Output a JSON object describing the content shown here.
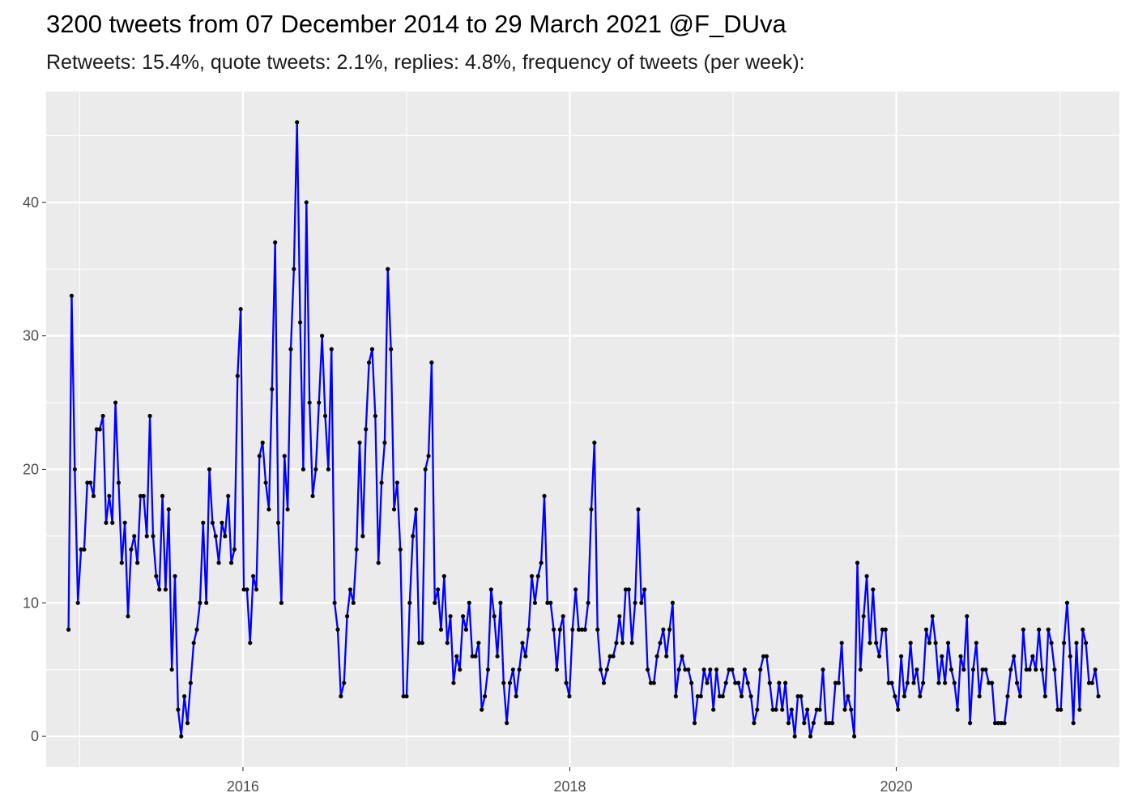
{
  "chart_data": {
    "type": "line",
    "title": "3200 tweets from 07 December 2014 to 29 March 2021 @F_DUva",
    "subtitle": "Retweets: 15.4%, quote tweets: 2.1%, replies: 4.8%, frequency of tweets (per week):",
    "xlabel": "",
    "ylabel": "",
    "x_range": [
      "2014-10-18",
      "2021-05-14"
    ],
    "x_ticks": [
      {
        "date": "2016-01-01",
        "label": "2016"
      },
      {
        "date": "2018-01-01",
        "label": "2018"
      },
      {
        "date": "2020-01-01",
        "label": "2020"
      }
    ],
    "ylim": [
      -2.3,
      48.3
    ],
    "y_ticks": [
      0,
      10,
      20,
      30,
      40
    ],
    "grid": true,
    "series": [
      {
        "color": "#0000ff",
        "point_color": "#000000",
        "x": [
          "2014-12-07",
          "2014-12-14",
          "2014-12-21",
          "2014-12-28",
          "2015-01-04",
          "2015-01-11",
          "2015-01-18",
          "2015-01-25",
          "2015-02-01",
          "2015-02-08",
          "2015-02-15",
          "2015-02-22",
          "2015-03-01",
          "2015-03-08",
          "2015-03-15",
          "2015-03-22",
          "2015-03-29",
          "2015-04-05",
          "2015-04-12",
          "2015-04-19",
          "2015-04-26",
          "2015-05-03",
          "2015-05-10",
          "2015-05-17",
          "2015-05-24",
          "2015-05-31",
          "2015-06-07",
          "2015-06-14",
          "2015-06-21",
          "2015-06-28",
          "2015-07-05",
          "2015-07-12",
          "2015-07-19",
          "2015-07-26",
          "2015-08-02",
          "2015-08-09",
          "2015-08-16",
          "2015-08-23",
          "2015-08-30",
          "2015-09-06",
          "2015-09-13",
          "2015-09-20",
          "2015-09-27",
          "2015-10-04",
          "2015-10-11",
          "2015-10-18",
          "2015-10-25",
          "2015-11-01",
          "2015-11-08",
          "2015-11-15",
          "2015-11-22",
          "2015-11-29",
          "2015-12-06",
          "2015-12-13",
          "2015-12-20",
          "2015-12-27",
          "2016-01-03",
          "2016-01-10",
          "2016-01-17",
          "2016-01-24",
          "2016-01-31",
          "2016-02-07",
          "2016-02-14",
          "2016-02-21",
          "2016-02-28",
          "2016-03-06",
          "2016-03-13",
          "2016-03-20",
          "2016-03-27",
          "2016-04-03",
          "2016-04-10",
          "2016-04-17",
          "2016-04-24",
          "2016-05-01",
          "2016-05-08",
          "2016-05-15",
          "2016-05-22",
          "2016-05-29",
          "2016-06-05",
          "2016-06-12",
          "2016-06-19",
          "2016-06-26",
          "2016-07-03",
          "2016-07-10",
          "2016-07-17",
          "2016-07-24",
          "2016-07-31",
          "2016-08-07",
          "2016-08-14",
          "2016-08-21",
          "2016-08-28",
          "2016-09-04",
          "2016-09-11",
          "2016-09-18",
          "2016-09-25",
          "2016-10-02",
          "2016-10-09",
          "2016-10-16",
          "2016-10-23",
          "2016-10-30",
          "2016-11-06",
          "2016-11-13",
          "2016-11-20",
          "2016-11-27",
          "2016-12-04",
          "2016-12-11",
          "2016-12-18",
          "2016-12-25",
          "2017-01-01",
          "2017-01-08",
          "2017-01-15",
          "2017-01-22",
          "2017-01-29",
          "2017-02-05",
          "2017-02-12",
          "2017-02-19",
          "2017-02-26",
          "2017-03-05",
          "2017-03-12",
          "2017-03-19",
          "2017-03-26",
          "2017-04-02",
          "2017-04-09",
          "2017-04-16",
          "2017-04-23",
          "2017-04-30",
          "2017-05-07",
          "2017-05-14",
          "2017-05-21",
          "2017-05-28",
          "2017-06-04",
          "2017-06-11",
          "2017-06-18",
          "2017-06-25",
          "2017-07-02",
          "2017-07-09",
          "2017-07-16",
          "2017-07-23",
          "2017-07-30",
          "2017-08-06",
          "2017-08-13",
          "2017-08-20",
          "2017-08-27",
          "2017-09-03",
          "2017-09-10",
          "2017-09-17",
          "2017-09-24",
          "2017-10-01",
          "2017-10-08",
          "2017-10-15",
          "2017-10-22",
          "2017-10-29",
          "2017-11-05",
          "2017-11-12",
          "2017-11-19",
          "2017-11-26",
          "2017-12-03",
          "2017-12-10",
          "2017-12-17",
          "2017-12-24",
          "2017-12-31",
          "2018-01-07",
          "2018-01-14",
          "2018-01-21",
          "2018-01-28",
          "2018-02-04",
          "2018-02-11",
          "2018-02-18",
          "2018-02-25",
          "2018-03-04",
          "2018-03-11",
          "2018-03-18",
          "2018-03-25",
          "2018-04-01",
          "2018-04-08",
          "2018-04-15",
          "2018-04-22",
          "2018-04-29",
          "2018-05-06",
          "2018-05-13",
          "2018-05-20",
          "2018-05-27",
          "2018-06-03",
          "2018-06-10",
          "2018-06-17",
          "2018-06-24",
          "2018-07-01",
          "2018-07-08",
          "2018-07-15",
          "2018-07-22",
          "2018-07-29",
          "2018-08-05",
          "2018-08-12",
          "2018-08-19",
          "2018-08-26",
          "2018-09-02",
          "2018-09-09",
          "2018-09-16",
          "2018-09-23",
          "2018-09-30",
          "2018-10-07",
          "2018-10-14",
          "2018-10-21",
          "2018-10-28",
          "2018-11-04",
          "2018-11-11",
          "2018-11-18",
          "2018-11-25",
          "2018-12-02",
          "2018-12-09",
          "2018-12-16",
          "2018-12-23",
          "2018-12-30",
          "2019-01-06",
          "2019-01-13",
          "2019-01-20",
          "2019-01-27",
          "2019-02-03",
          "2019-02-10",
          "2019-02-17",
          "2019-02-24",
          "2019-03-03",
          "2019-03-10",
          "2019-03-17",
          "2019-03-24",
          "2019-03-31",
          "2019-04-07",
          "2019-04-14",
          "2019-04-21",
          "2019-04-28",
          "2019-05-05",
          "2019-05-12",
          "2019-05-19",
          "2019-05-26",
          "2019-06-02",
          "2019-06-09",
          "2019-06-16",
          "2019-06-23",
          "2019-06-30",
          "2019-07-07",
          "2019-07-14",
          "2019-07-21",
          "2019-07-28",
          "2019-08-04",
          "2019-08-11",
          "2019-08-18",
          "2019-08-25",
          "2019-09-01",
          "2019-09-08",
          "2019-09-15",
          "2019-09-22",
          "2019-09-29",
          "2019-10-06",
          "2019-10-13",
          "2019-10-20",
          "2019-10-27",
          "2019-11-03",
          "2019-11-10",
          "2019-11-17",
          "2019-11-24",
          "2019-12-01",
          "2019-12-08",
          "2019-12-15",
          "2019-12-22",
          "2019-12-29",
          "2020-01-05",
          "2020-01-12",
          "2020-01-19",
          "2020-01-26",
          "2020-02-02",
          "2020-02-09",
          "2020-02-16",
          "2020-02-23",
          "2020-03-01",
          "2020-03-08",
          "2020-03-15",
          "2020-03-22",
          "2020-03-29",
          "2020-04-05",
          "2020-04-12",
          "2020-04-19",
          "2020-04-26",
          "2020-05-03",
          "2020-05-10",
          "2020-05-17",
          "2020-05-24",
          "2020-05-31",
          "2020-06-07",
          "2020-06-14",
          "2020-06-21",
          "2020-06-28",
          "2020-07-05",
          "2020-07-12",
          "2020-07-19",
          "2020-07-26",
          "2020-08-02",
          "2020-08-09",
          "2020-08-16",
          "2020-08-23",
          "2020-08-30",
          "2020-09-06",
          "2020-09-13",
          "2020-09-20",
          "2020-09-27",
          "2020-10-04",
          "2020-10-11",
          "2020-10-18",
          "2020-10-25",
          "2020-11-01",
          "2020-11-08",
          "2020-11-15",
          "2020-11-22",
          "2020-11-29",
          "2020-12-06",
          "2020-12-13",
          "2020-12-20",
          "2020-12-27",
          "2021-01-03",
          "2021-01-10",
          "2021-01-17",
          "2021-01-24",
          "2021-01-31",
          "2021-02-07",
          "2021-02-14",
          "2021-02-21",
          "2021-02-28",
          "2021-03-07",
          "2021-03-14",
          "2021-03-21",
          "2021-03-28"
        ],
        "values": [
          8,
          33,
          20,
          10,
          14,
          14,
          19,
          19,
          18,
          23,
          23,
          24,
          16,
          18,
          16,
          25,
          19,
          13,
          16,
          9,
          14,
          15,
          13,
          18,
          18,
          15,
          24,
          15,
          12,
          11,
          18,
          11,
          17,
          5,
          12,
          2,
          0,
          3,
          1,
          4,
          7,
          8,
          10,
          16,
          10,
          20,
          16,
          15,
          13,
          16,
          15,
          18,
          13,
          14,
          27,
          32,
          11,
          11,
          7,
          12,
          11,
          21,
          22,
          19,
          17,
          26,
          37,
          16,
          10,
          21,
          17,
          29,
          35,
          46,
          31,
          20,
          40,
          25,
          18,
          20,
          25,
          30,
          24,
          20,
          29,
          10,
          8,
          3,
          4,
          9,
          11,
          10,
          14,
          22,
          15,
          23,
          28,
          29,
          24,
          13,
          19,
          22,
          35,
          29,
          17,
          19,
          14,
          3,
          3,
          10,
          15,
          17,
          7,
          7,
          20,
          21,
          28,
          10,
          11,
          8,
          12,
          7,
          9,
          4,
          6,
          5,
          9,
          8,
          10,
          6,
          6,
          7,
          2,
          3,
          5,
          11,
          9,
          6,
          10,
          4,
          1,
          4,
          5,
          3,
          5,
          7,
          6,
          8,
          12,
          10,
          12,
          13,
          18,
          10,
          10,
          8,
          5,
          8,
          9,
          4,
          3,
          8,
          11,
          8,
          8,
          8,
          10,
          17,
          22,
          8,
          5,
          4,
          5,
          6,
          6,
          7,
          9,
          7,
          11,
          11,
          7,
          10,
          17,
          10,
          11,
          5,
          4,
          4,
          6,
          7,
          8,
          6,
          8,
          10,
          3,
          5,
          6,
          5,
          5,
          4,
          1,
          3,
          3,
          5,
          4,
          5,
          2,
          5,
          3,
          3,
          4,
          5,
          5,
          4,
          4,
          3,
          5,
          4,
          3,
          1,
          2,
          5,
          6,
          6,
          4,
          2,
          2,
          4,
          2,
          4,
          1,
          2,
          0,
          3,
          3,
          1,
          2,
          0,
          1,
          2,
          2,
          5,
          1,
          1,
          1,
          4,
          4,
          7,
          2,
          3,
          2,
          0,
          13,
          5,
          9,
          12,
          7,
          11,
          7,
          6,
          8,
          8,
          4,
          4,
          3,
          2,
          6,
          3,
          4,
          7,
          4,
          5,
          3,
          4,
          8,
          7,
          9,
          7,
          4,
          6,
          4,
          7,
          5,
          4,
          2,
          6,
          5,
          9,
          1,
          5,
          7,
          3,
          5,
          5,
          4,
          4,
          1,
          1,
          1,
          1,
          3,
          5,
          6,
          4,
          3,
          8,
          5,
          5,
          6,
          5,
          8,
          5,
          3,
          8,
          7,
          5,
          2,
          2,
          7,
          10,
          6,
          1,
          7,
          2,
          8,
          7,
          4,
          4,
          5,
          3
        ]
      }
    ]
  }
}
